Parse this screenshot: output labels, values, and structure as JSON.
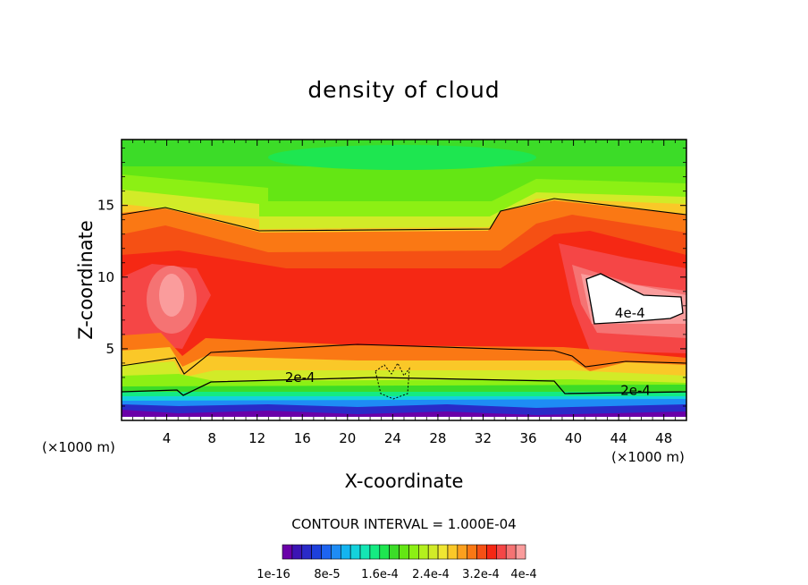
{
  "chart_data": {
    "type": "heatmap",
    "title": "density of cloud",
    "xlabel": "X-coordinate",
    "ylabel": "Z-coordinate",
    "x_unit_left": "(×1000 m)",
    "x_unit_right": "(×1000 m)",
    "xlim": [
      0,
      50
    ],
    "ylim": [
      0,
      19.6
    ],
    "x_ticks": [
      4,
      8,
      12,
      16,
      20,
      24,
      28,
      32,
      36,
      40,
      44,
      48
    ],
    "x_tick_labels": [
      "4",
      "8",
      "12",
      "16",
      "20",
      "24",
      "28",
      "32",
      "36",
      "40",
      "44",
      "48"
    ],
    "y_ticks": [
      5,
      10,
      15
    ],
    "y_tick_labels": [
      "5",
      "10",
      "15"
    ],
    "contour_interval_text": "CONTOUR INTERVAL = 1.000E-04",
    "contour_labels": [
      {
        "text": "2e-4",
        "x": 15.8,
        "z": 3.0
      },
      {
        "text": "2e-4",
        "x": 45.5,
        "z": 2.1
      },
      {
        "text": "4e-4",
        "x": 45.0,
        "z": 7.5
      }
    ],
    "colorbar": {
      "colors": [
        "#6a00a8",
        "#3c14b4",
        "#2a2ac8",
        "#1e40dc",
        "#1e64f0",
        "#1e8cf5",
        "#14b4f0",
        "#14d2dc",
        "#14e6b4",
        "#14eb82",
        "#1ee650",
        "#3cdc28",
        "#64e614",
        "#8cf014",
        "#b4f01e",
        "#d2eb28",
        "#f0e632",
        "#fac828",
        "#fca01e",
        "#fa7814",
        "#f55014",
        "#f52814",
        "#f54646",
        "#f57373",
        "#fa9c9c"
      ],
      "tick_labels": [
        "1e-16",
        "8e-5",
        "1.6e-4",
        "2.4e-4",
        "3.2e-4",
        "4e-4"
      ]
    },
    "grid": false
  }
}
